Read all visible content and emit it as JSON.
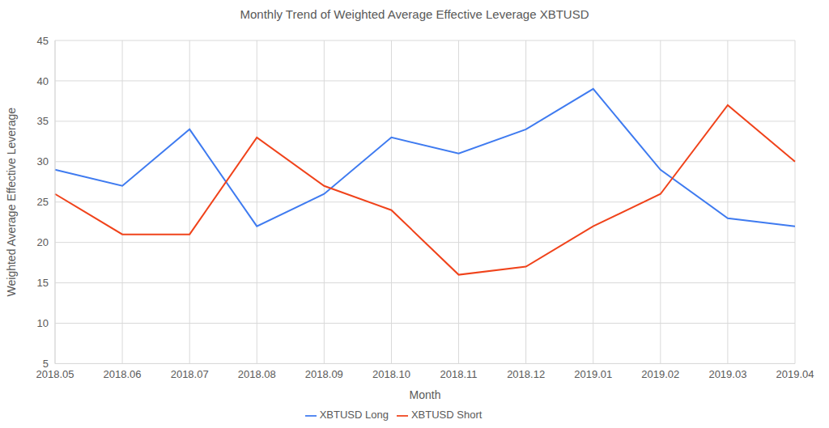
{
  "chart_data": {
    "type": "line",
    "title": "Monthly Trend of Weighted Average Effective Leverage XBTUSD",
    "x_label": "Month",
    "y_label": "Weighted Average Effective Leverage",
    "categories": [
      "2018.05",
      "2018.06",
      "2018.07",
      "2018.08",
      "2018.09",
      "2018.10",
      "2018.11",
      "2018.12",
      "2019.01",
      "2019.02",
      "2019.03",
      "2019.04"
    ],
    "series": [
      {
        "name": "XBTUSD Long",
        "color": "#3f7bf0",
        "values": [
          29,
          27,
          34,
          22,
          26,
          33,
          31,
          34,
          39,
          29,
          23,
          22
        ]
      },
      {
        "name": "XBTUSD Short",
        "color": "#f0431b",
        "values": [
          26,
          21,
          21,
          33,
          27,
          24,
          16,
          17,
          22,
          26,
          37,
          30
        ]
      }
    ],
    "ylim": [
      5,
      45
    ],
    "yticks": [
      5,
      10,
      15,
      20,
      25,
      30,
      35,
      40,
      45
    ],
    "grid": true,
    "legend": "bottom"
  }
}
